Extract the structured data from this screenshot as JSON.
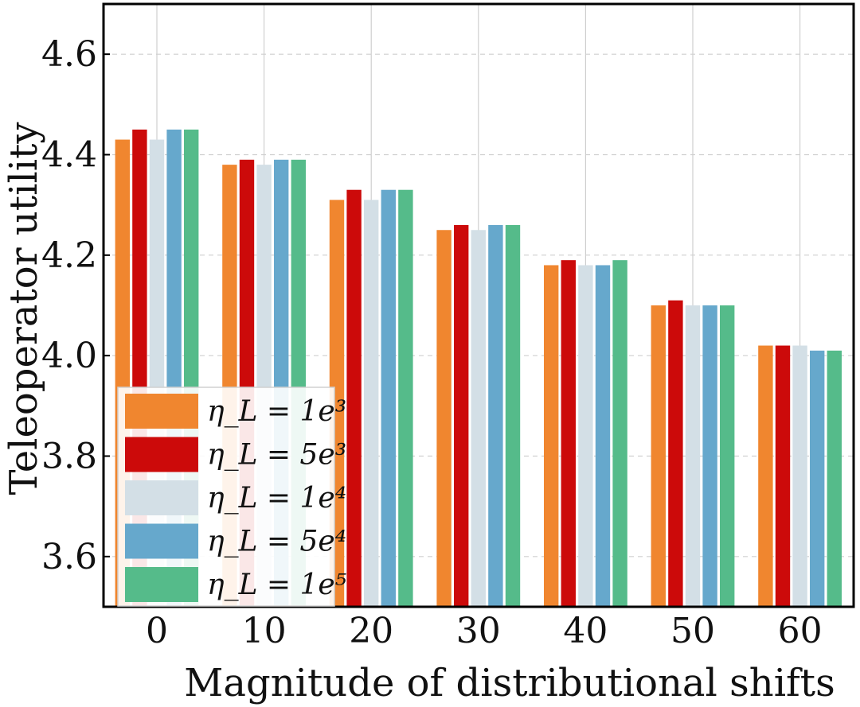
{
  "chart_data": {
    "type": "bar",
    "title": "",
    "xlabel": "Magnitude of distributional shifts",
    "ylabel": "Teleoperator utility",
    "categories": [
      "0",
      "10",
      "20",
      "30",
      "40",
      "50",
      "60"
    ],
    "ylim": [
      3.5,
      4.7
    ],
    "yticks": [
      "3.6",
      "3.8",
      "4.0",
      "4.2",
      "4.4",
      "4.6"
    ],
    "grid": true,
    "legend_position": "lower-left",
    "series": [
      {
        "name": "η_L = 1e³",
        "color": "#f0862f",
        "values": [
          4.43,
          4.38,
          4.31,
          4.25,
          4.18,
          4.1,
          4.02
        ]
      },
      {
        "name": "η_L = 5e³",
        "color": "#cc0a0a",
        "values": [
          4.45,
          4.39,
          4.33,
          4.26,
          4.19,
          4.11,
          4.02
        ]
      },
      {
        "name": "η_L = 1e⁴",
        "color": "#d3dfe6",
        "values": [
          4.43,
          4.38,
          4.31,
          4.25,
          4.18,
          4.1,
          4.02
        ]
      },
      {
        "name": "η_L = 5e⁴",
        "color": "#66a8cc",
        "values": [
          4.45,
          4.39,
          4.33,
          4.26,
          4.18,
          4.1,
          4.01
        ]
      },
      {
        "name": "η_L = 1e⁵",
        "color": "#55bb8a",
        "values": [
          4.45,
          4.39,
          4.33,
          4.26,
          4.19,
          4.1,
          4.01
        ]
      }
    ]
  }
}
